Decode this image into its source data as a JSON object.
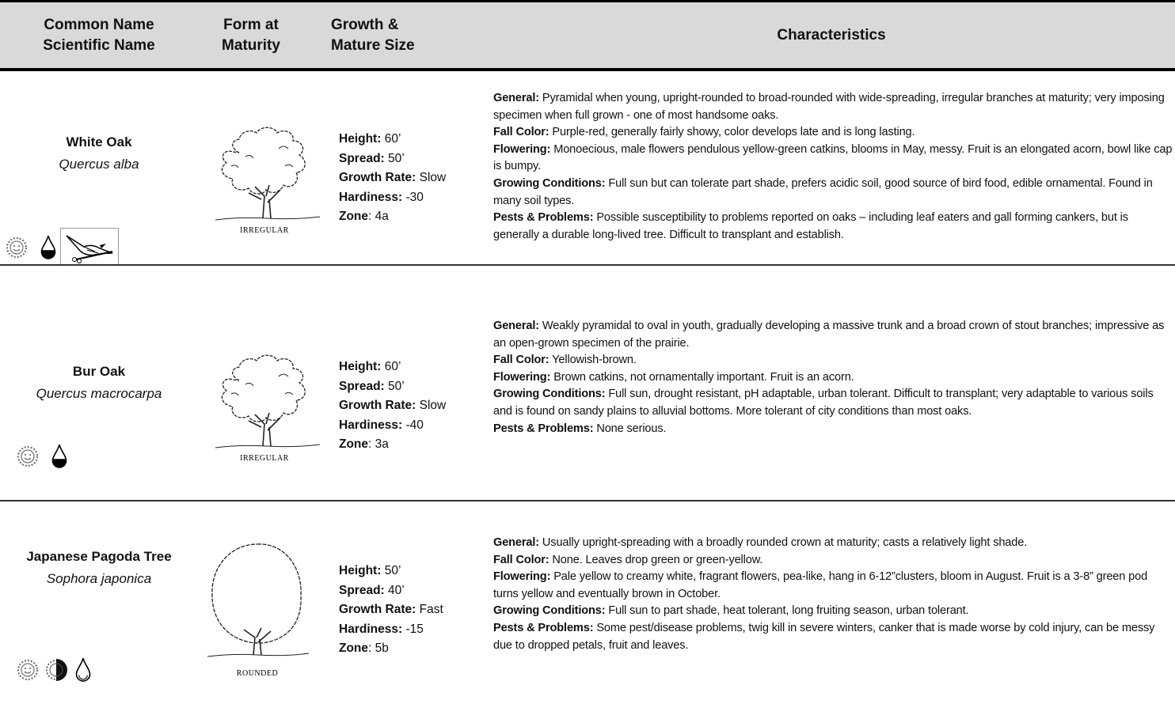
{
  "header": {
    "columns": [
      [
        "Common Name",
        "Scientific Name"
      ],
      [
        "Form at",
        "Maturity"
      ],
      [
        "Growth &",
        "Mature Size"
      ],
      [
        "Characteristics"
      ]
    ]
  },
  "rows": [
    {
      "common_name": "White Oak",
      "scientific_name": "Quercus alba",
      "form": "IRREGULAR",
      "growth": [
        {
          "label": "Height:",
          "value": "60’"
        },
        {
          "label": "Spread:",
          "value": "50’"
        },
        {
          "label": "Growth Rate:",
          "value": "Slow"
        },
        {
          "label": "Hardiness:",
          "value": "-30"
        },
        {
          "label": "Zone",
          "value": ": 4a"
        }
      ],
      "characteristics": [
        {
          "label": "General:",
          "text": "Pyramidal when young, upright-rounded to broad-rounded with wide-spreading, irregular branches at maturity; very imposing specimen when full grown - one of most handsome oaks."
        },
        {
          "label": "Fall Color:",
          "text": "Purple-red, generally fairly showy, color develops late and is long lasting."
        },
        {
          "label": "Flowering:",
          "text": "Monoecious, male flowers pendulous yellow-green catkins, blooms in May, messy. Fruit is an elongated acorn, bowl like cap is bumpy."
        },
        {
          "label": "Growing Conditions:",
          "text": "Full sun but can tolerate part shade, prefers acidic soil, good source of bird food, edible ornamental.  Found in many soil types."
        },
        {
          "label": "Pests & Problems:",
          "text": "Possible susceptibility to problems reported on oaks – including leaf eaters and gall forming cankers, but is generally a durable long-lived tree.  Difficult to transplant and establish."
        }
      ]
    },
    {
      "common_name": "Bur Oak",
      "scientific_name": "Quercus macrocarpa",
      "form": "IRREGULAR",
      "growth": [
        {
          "label": "Height:",
          "value": "60’"
        },
        {
          "label": "Spread:",
          "value": "50’"
        },
        {
          "label": "Growth Rate:",
          "value": "Slow"
        },
        {
          "label": "Hardiness:",
          "value": "-40"
        },
        {
          "label": "Zone",
          "value": ": 3a"
        }
      ],
      "characteristics": [
        {
          "label": "General:",
          "text": "Weakly pyramidal to oval in youth, gradually developing a massive trunk and a broad crown of stout branches; impressive as an open-grown specimen of the prairie."
        },
        {
          "label": "Fall Color:",
          "text": "Yellowish-brown."
        },
        {
          "label": "Flowering:",
          "text": "Brown catkins, not ornamentally important.  Fruit is an acorn."
        },
        {
          "label": "Growing Conditions:",
          "text": "Full sun, drought resistant, pH adaptable, urban tolerant.  Difficult to transplant; very adaptable to various soils and is found on sandy plains to alluvial bottoms.  More tolerant of city conditions than most oaks."
        },
        {
          "label": "Pests & Problems:",
          "text": "None serious."
        }
      ]
    },
    {
      "common_name": "Japanese Pagoda Tree",
      "scientific_name": "Sophora japonica",
      "form": "ROUNDED",
      "growth": [
        {
          "label": "Height:",
          "value": "50’"
        },
        {
          "label": "Spread:",
          "value": "40’"
        },
        {
          "label": "Growth Rate:",
          "value": "Fast"
        },
        {
          "label": "Hardiness:",
          "value": "-15"
        },
        {
          "label": "Zone",
          "value": ": 5b"
        }
      ],
      "characteristics": [
        {
          "label": "General:",
          "text": "Usually upright-spreading with a broadly rounded crown at maturity; casts a relatively light shade."
        },
        {
          "label": "Fall Color:",
          "text": "None. Leaves drop green or green-yellow."
        },
        {
          "label": "Flowering:",
          "text": "Pale yellow to creamy white, fragrant flowers, pea-like, hang in 6-12”clusters, bloom in August. Fruit is a 3-8” green pod turns yellow and eventually brown in October."
        },
        {
          "label": "Growing Conditions:",
          "text": "Full sun to part shade, heat tolerant, long fruiting season, urban tolerant."
        },
        {
          "label": "Pests & Problems:",
          "text": "Some pest/disease problems, twig kill in severe winters, canker that is made worse by cold injury, can be messy due to dropped petals, fruit and leaves."
        }
      ]
    }
  ]
}
